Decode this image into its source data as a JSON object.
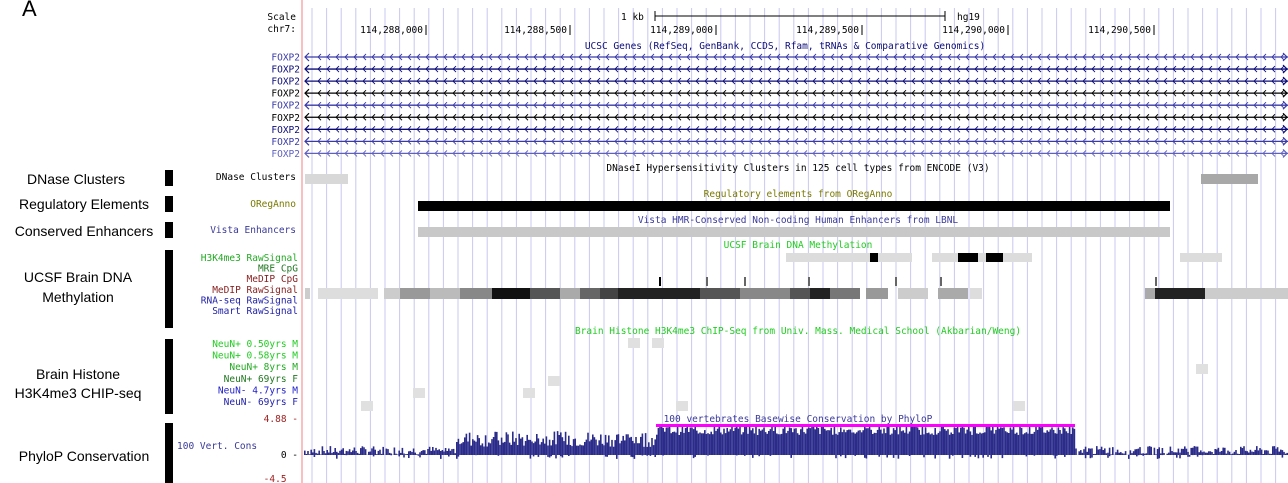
{
  "figure_label": "A",
  "ruler": {
    "scale_label": "Scale",
    "chrom_label": "chr7:",
    "scale_text": "1 kb",
    "assembly": "hg19",
    "ticks": [
      "114,288,000",
      "114,288,500",
      "114,289,000",
      "114,289,500",
      "114,290,000",
      "114,290,500"
    ]
  },
  "genes": {
    "title": "UCSC Genes (RefSeq, GenBank, CCDS, Rfam, tRNAs & Comparative Genomics)",
    "rows": [
      {
        "name": "FOXP2",
        "color": "#3a3aa8"
      },
      {
        "name": "FOXP2",
        "color": "#0c0c78"
      },
      {
        "name": "FOXP2",
        "color": "#0c0c78"
      },
      {
        "name": "FOXP2",
        "color": "#000000"
      },
      {
        "name": "FOXP2",
        "color": "#3a3aa8"
      },
      {
        "name": "FOXP2",
        "color": "#000000"
      },
      {
        "name": "FOXP2",
        "color": "#0c0c78"
      },
      {
        "name": "FOXP2",
        "color": "#3a3aa8"
      },
      {
        "name": "FOXP2",
        "color": "#6060c0"
      }
    ]
  },
  "panels": {
    "dnase": "DNase Clusters",
    "regulatory": "Regulatory Elements",
    "enhancers": "Conserved Enhancers",
    "methylation_1": "UCSF Brain DNA",
    "methylation_2": "Methylation",
    "histone_1": "Brain Histone",
    "histone_2": "H3K4me3 CHIP-seq",
    "phylop": "PhyloP Conservation"
  },
  "tracks": {
    "dnase": {
      "label": "DNase Clusters",
      "title": "DNaseI Hypersensitivity Clusters in 125 cell types from ENCODE (V3)"
    },
    "oreganno": {
      "label": "ORegAnno",
      "title": "Regulatory elements from ORegAnno",
      "color": "#7a7a00"
    },
    "vista": {
      "label": "Vista Enhancers",
      "title": "Vista HMR-Conserved Non-coding Human Enhancers from LBNL",
      "color": "#3a3a9a"
    },
    "methylation": {
      "title": "UCSF Brain DNA Methylation",
      "labels": [
        {
          "text": "H3K4me3 RawSignal",
          "color": "#22aa22"
        },
        {
          "text": "MRE CpG",
          "color": "#227722"
        },
        {
          "text": "MeDIP CpG",
          "color": "#882222"
        },
        {
          "text": "MeDIP RawSignal",
          "color": "#882222"
        },
        {
          "text": "RNA-seq RawSignal",
          "color": "#2222aa"
        },
        {
          "text": "Smart RawSignal",
          "color": "#2222aa"
        }
      ]
    },
    "histone": {
      "title": "Brain Histone H3K4me3 ChIP-Seq from Univ. Mass. Medical School (Akbarian/Weng)",
      "labels": [
        {
          "text": "NeuN+ 0.50yrs M",
          "color": "#22cc22"
        },
        {
          "text": "NeuN+ 0.58yrs M",
          "color": "#22cc22"
        },
        {
          "text": "NeuN+ 8yrs M",
          "color": "#22aa22"
        },
        {
          "text": "NeuN+ 69yrs F",
          "color": "#227722"
        },
        {
          "text": "NeuN- 4.7yrs M",
          "color": "#2222cc"
        },
        {
          "text": "NeuN- 69yrs F",
          "color": "#2222aa"
        }
      ]
    },
    "phylop": {
      "label": "100 Vert. Cons",
      "title": "100 vertebrates Basewise Conservation by PhyloP",
      "max": "4.88 -",
      "zero": "0 -",
      "min": "-4.5 _"
    }
  },
  "colors": {
    "grid": "#c8c8f0",
    "ucsc_blue": "#0c0c78",
    "phylop": "#2b2b8a",
    "phylop_cap": "#ff00ff",
    "meth_title": "#22cc22",
    "histone_title": "#22cc22"
  }
}
